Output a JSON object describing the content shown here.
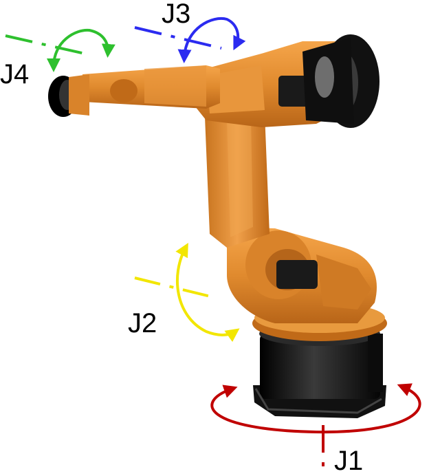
{
  "joints": [
    {
      "id": "J1",
      "label": "J1",
      "color": "#c00000"
    },
    {
      "id": "J2",
      "label": "J2",
      "color": "#f2e600"
    },
    {
      "id": "J3",
      "label": "J3",
      "color": "#2b2bf0"
    },
    {
      "id": "J4",
      "label": "J4",
      "color": "#2ec02e"
    }
  ],
  "robot": {
    "body_color": "#e08a2e",
    "base_color": "#1a1a1a"
  }
}
